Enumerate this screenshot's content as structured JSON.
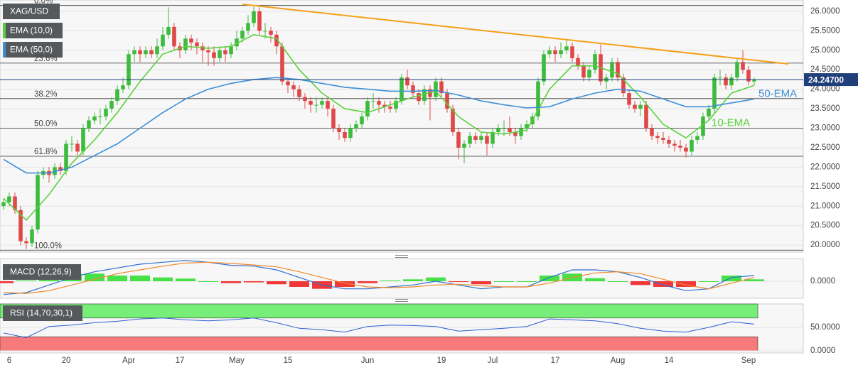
{
  "chart_data": [
    {
      "type": "candlestick",
      "title": "XAG/USD",
      "categories": [
        null,
        "6",
        null,
        null,
        null,
        null,
        null,
        null,
        null,
        null,
        null,
        "20",
        null,
        null,
        null,
        null,
        null,
        null,
        null,
        null,
        null,
        null,
        "Apr",
        null,
        null,
        null,
        null,
        null,
        null,
        null,
        null,
        "17",
        null,
        null,
        null,
        null,
        null,
        null,
        null,
        null,
        null,
        "May",
        null,
        null,
        null,
        null,
        null,
        null,
        null,
        null,
        "15",
        null,
        null,
        null,
        null,
        null,
        null,
        null,
        null,
        null,
        null,
        null,
        null,
        null,
        "Jun",
        null,
        null,
        null,
        null,
        null,
        null,
        null,
        null,
        null,
        null,
        null,
        null,
        "19",
        null,
        null,
        null,
        null,
        null,
        null,
        null,
        null,
        "Jul",
        null,
        null,
        null,
        null,
        null,
        null,
        null,
        null,
        null,
        null,
        "17",
        null,
        null,
        null,
        null,
        null,
        null,
        null,
        null,
        null,
        null,
        "Aug",
        null,
        null,
        null,
        null,
        null,
        null,
        null,
        null,
        "14",
        null,
        null,
        null,
        null,
        null,
        null,
        null,
        null,
        null,
        null,
        null,
        null,
        null,
        "Sep",
        null
      ],
      "open": [
        21.0,
        21.1,
        21.25,
        20.9,
        20.1,
        20.05,
        20.4,
        21.8,
        21.9,
        21.8,
        22.0,
        21.9,
        22.6,
        22.6,
        22.4,
        23.0,
        23.2,
        23.3,
        23.3,
        23.5,
        23.7,
        24.0,
        24.1,
        24.9,
        25.0,
        24.9,
        25.0,
        24.9,
        25.1,
        25.4,
        25.6,
        25.1,
        25.0,
        25.3,
        25.2,
        25.1,
        25.0,
        24.95,
        24.8,
        25.0,
        24.9,
        25.1,
        25.3,
        25.5,
        25.7,
        26.0,
        25.5,
        25.5,
        25.4,
        25.1,
        24.2,
        24.1,
        24.0,
        23.8,
        23.7,
        23.6,
        23.6,
        23.7,
        23.5,
        23.0,
        22.9,
        22.75,
        23.0,
        23.1,
        23.3,
        23.7,
        23.7,
        23.6,
        23.55,
        23.5,
        23.7,
        24.3,
        24.1,
        23.9,
        23.7,
        24.0,
        23.8,
        24.2,
        23.9,
        23.5,
        22.9,
        22.5,
        22.6,
        22.8,
        22.7,
        22.8,
        22.6,
        22.9,
        23.0,
        23.0,
        22.9,
        22.8,
        23.0,
        23.1,
        23.3,
        24.2,
        24.9,
        25.0,
        24.9,
        25.0,
        25.1,
        24.8,
        24.6,
        24.3,
        24.5,
        24.9,
        24.2,
        24.3,
        24.7,
        24.3,
        23.9,
        23.6,
        23.5,
        23.6,
        23.0,
        22.8,
        22.75,
        22.7,
        22.6,
        22.55,
        22.5,
        22.4,
        22.7,
        22.8,
        23.3,
        23.5,
        24.3,
        24.3,
        24.1,
        24.3,
        24.7,
        24.5,
        24.2
      ],
      "high": [
        21.2,
        21.35,
        21.35,
        21.0,
        20.2,
        20.5,
        21.9,
        22.0,
        22.0,
        22.1,
        22.1,
        22.7,
        22.8,
        22.7,
        23.1,
        23.3,
        23.4,
        23.5,
        23.6,
        23.8,
        24.1,
        24.3,
        25.0,
        25.1,
        25.1,
        25.1,
        25.1,
        25.3,
        25.6,
        26.1,
        25.7,
        25.2,
        25.4,
        25.4,
        25.3,
        25.2,
        25.1,
        25.1,
        25.1,
        25.1,
        25.2,
        25.5,
        25.6,
        25.9,
        26.12,
        26.1,
        25.7,
        25.6,
        25.5,
        25.2,
        24.3,
        24.2,
        24.1,
        23.9,
        23.8,
        23.8,
        23.8,
        23.8,
        23.6,
        23.1,
        23.0,
        23.1,
        23.2,
        23.4,
        23.8,
        23.9,
        23.8,
        23.7,
        23.7,
        23.8,
        24.4,
        24.5,
        24.2,
        24.0,
        24.1,
        24.1,
        24.3,
        24.3,
        24.0,
        23.6,
        23.0,
        22.7,
        22.9,
        22.9,
        22.9,
        22.9,
        23.0,
        23.1,
        23.2,
        23.3,
        23.0,
        23.1,
        23.2,
        23.4,
        24.3,
        25.0,
        25.1,
        25.1,
        25.2,
        25.3,
        25.2,
        24.9,
        24.7,
        24.6,
        25.0,
        25.15,
        24.4,
        24.8,
        24.8,
        24.4,
        24.0,
        23.7,
        23.7,
        23.7,
        23.1,
        22.9,
        22.9,
        22.8,
        22.7,
        22.7,
        22.6,
        22.8,
        22.9,
        23.4,
        23.6,
        24.4,
        24.5,
        24.4,
        24.4,
        24.8,
        25.0,
        24.6,
        24.3
      ],
      "low": [
        20.9,
        21.0,
        20.8,
        20.0,
        19.9,
        19.95,
        20.3,
        21.7,
        21.6,
        21.7,
        21.8,
        21.8,
        22.4,
        22.3,
        22.3,
        22.9,
        23.1,
        23.1,
        23.2,
        23.4,
        23.6,
        23.9,
        24.0,
        24.7,
        24.7,
        24.8,
        24.8,
        24.8,
        25.0,
        25.3,
        25.0,
        24.8,
        24.9,
        25.0,
        24.9,
        24.7,
        24.6,
        24.6,
        24.7,
        24.7,
        24.8,
        25.0,
        25.2,
        25.4,
        25.6,
        25.4,
        25.3,
        25.2,
        24.9,
        24.1,
        23.9,
        23.8,
        23.7,
        23.5,
        23.4,
        23.4,
        23.5,
        23.3,
        22.9,
        22.7,
        22.65,
        22.65,
        22.9,
        23.0,
        23.2,
        23.5,
        23.4,
        23.4,
        23.4,
        23.4,
        23.6,
        24.0,
        23.8,
        23.6,
        23.6,
        23.2,
        23.7,
        23.8,
        23.4,
        22.8,
        22.2,
        22.1,
        22.5,
        22.6,
        22.6,
        22.3,
        22.5,
        22.8,
        22.8,
        22.8,
        22.6,
        22.7,
        22.9,
        23.0,
        23.2,
        24.1,
        24.8,
        24.7,
        24.8,
        24.9,
        24.7,
        24.5,
        24.2,
        24.2,
        24.4,
        24.1,
        24.0,
        24.2,
        24.2,
        23.8,
        23.5,
        23.4,
        23.3,
        22.9,
        22.7,
        22.6,
        22.6,
        22.5,
        22.4,
        22.4,
        22.25,
        22.3,
        22.6,
        22.7,
        23.2,
        23.4,
        24.1,
        24.0,
        24.0,
        24.2,
        24.4,
        24.1,
        24.1
      ],
      "close": [
        21.1,
        21.25,
        20.9,
        20.1,
        20.05,
        20.4,
        21.8,
        21.9,
        21.8,
        22.0,
        21.9,
        22.6,
        22.6,
        22.4,
        23.0,
        23.2,
        23.3,
        23.3,
        23.5,
        23.7,
        24.0,
        24.1,
        24.9,
        25.0,
        24.9,
        25.0,
        24.9,
        25.1,
        25.4,
        25.6,
        25.1,
        25.0,
        25.3,
        25.2,
        25.1,
        25.0,
        24.95,
        24.8,
        25.0,
        24.9,
        25.1,
        25.3,
        25.5,
        25.7,
        26.0,
        25.5,
        25.5,
        25.4,
        25.1,
        24.2,
        24.1,
        24.0,
        23.8,
        23.7,
        23.6,
        23.6,
        23.7,
        23.5,
        23.0,
        22.9,
        22.75,
        23.0,
        23.1,
        23.3,
        23.7,
        23.7,
        23.6,
        23.55,
        23.5,
        23.7,
        24.3,
        24.1,
        23.9,
        23.7,
        24.0,
        23.8,
        24.2,
        23.9,
        23.5,
        22.9,
        22.5,
        22.6,
        22.8,
        22.7,
        22.8,
        22.6,
        22.9,
        23.0,
        23.0,
        22.9,
        22.8,
        23.0,
        23.1,
        23.3,
        24.2,
        24.9,
        25.0,
        24.9,
        25.0,
        25.1,
        24.8,
        24.6,
        24.3,
        24.5,
        24.9,
        24.2,
        24.3,
        24.7,
        24.3,
        23.9,
        23.6,
        23.5,
        23.6,
        23.0,
        22.8,
        22.75,
        22.7,
        22.6,
        22.55,
        22.5,
        22.4,
        22.7,
        22.8,
        23.3,
        23.5,
        24.3,
        24.3,
        24.1,
        24.3,
        24.7,
        24.5,
        24.2,
        24.25
      ],
      "up_color": "#3dbb3d",
      "down_color": "#e04848",
      "xlim": [
        -0.625,
        140.625
      ],
      "ylim": [
        19.82,
        26.29
      ],
      "yticks": [
        {
          "value": 20,
          "label": "20.0000"
        },
        {
          "value": 20.5,
          "label": "20.5000"
        },
        {
          "value": 21,
          "label": "21.0000"
        },
        {
          "value": 21.5,
          "label": "21.5000"
        },
        {
          "value": 22,
          "label": "22.0000"
        },
        {
          "value": 22.5,
          "label": "22.5000"
        },
        {
          "value": 23,
          "label": "23.0000"
        },
        {
          "value": 23.5,
          "label": "23.5000"
        },
        {
          "value": 24,
          "label": "24.0000"
        },
        {
          "value": 24.5,
          "label": "24.5000"
        },
        {
          "value": 25,
          "label": "25.0000"
        },
        {
          "value": 25.5,
          "label": "25.5000"
        },
        {
          "value": 26,
          "label": "26.0000"
        }
      ],
      "grid": true,
      "series": [
        {
          "name": "EMA (10,0)",
          "annotation": "10-EMA",
          "color": "#5ad13a",
          "x": [
            0,
            4,
            8,
            12,
            16,
            20,
            24,
            28,
            32,
            36,
            40,
            44,
            48,
            52,
            56,
            60,
            64,
            68,
            72,
            76,
            80,
            84,
            88,
            92,
            96,
            100,
            104,
            108,
            112,
            116,
            120,
            124,
            128,
            132
          ],
          "values": [
            21.2,
            20.64,
            21.3,
            22.1,
            22.7,
            23.4,
            24.2,
            24.9,
            25.1,
            25.05,
            25.1,
            25.4,
            25.3,
            24.5,
            23.9,
            23.5,
            23.4,
            23.6,
            23.8,
            23.95,
            23.3,
            22.9,
            22.85,
            22.95,
            24.0,
            24.6,
            24.6,
            24.4,
            23.8,
            23.1,
            22.75,
            23.2,
            23.9,
            24.1
          ]
        },
        {
          "name": "EMA (50,0)",
          "annotation": "50-EMA",
          "color": "#3d8fd6",
          "x": [
            0,
            4,
            8,
            12,
            16,
            20,
            24,
            28,
            32,
            36,
            40,
            44,
            48,
            52,
            56,
            60,
            64,
            68,
            72,
            76,
            80,
            84,
            88,
            92,
            96,
            100,
            104,
            108,
            112,
            116,
            120,
            124,
            128,
            132
          ],
          "values": [
            22.2,
            21.85,
            21.85,
            22.0,
            22.3,
            22.6,
            23.0,
            23.4,
            23.75,
            24.0,
            24.15,
            24.25,
            24.3,
            24.25,
            24.15,
            24.05,
            24.0,
            23.95,
            23.95,
            23.97,
            23.85,
            23.7,
            23.6,
            23.52,
            23.55,
            23.75,
            23.9,
            24.0,
            23.95,
            23.75,
            23.55,
            23.55,
            23.65,
            23.75
          ]
        }
      ],
      "trendline": {
        "color": "#f5a01a",
        "x": [
          42,
          138
        ],
        "values": [
          26.18,
          24.65
        ]
      },
      "fib_levels": [
        {
          "label": "0.0%",
          "value": 26.15
        },
        {
          "label": "23.6%",
          "value": 24.67
        },
        {
          "label": "38.2%",
          "value": 23.76
        },
        {
          "label": "50.0%",
          "value": 23.0
        },
        {
          "label": "61.8%",
          "value": 22.28
        },
        {
          "label": "100.0%",
          "value": 19.87
        }
      ],
      "last_price": {
        "value": 24.247,
        "label": "24.24700"
      }
    },
    {
      "type": "macd",
      "title": "MACD (12,26,9)",
      "x": [
        0,
        4,
        8,
        12,
        16,
        20,
        24,
        28,
        32,
        36,
        40,
        44,
        48,
        52,
        56,
        60,
        64,
        68,
        72,
        76,
        80,
        84,
        88,
        92,
        96,
        100,
        104,
        108,
        112,
        116,
        120,
        124,
        128,
        132
      ],
      "ylim": [
        -0.45,
        0.6
      ],
      "yticks": [
        {
          "value": 0,
          "label": "0.0000"
        }
      ],
      "series": [
        {
          "name": "MACD",
          "color": "#2f6fd1",
          "values": [
            -0.35,
            -0.3,
            -0.1,
            0.1,
            0.25,
            0.35,
            0.45,
            0.5,
            0.55,
            0.5,
            0.42,
            0.4,
            0.3,
            0.1,
            -0.1,
            -0.2,
            -0.2,
            -0.15,
            -0.1,
            0.0,
            -0.1,
            -0.2,
            -0.15,
            -0.15,
            0.1,
            0.3,
            0.3,
            0.25,
            0.1,
            -0.1,
            -0.25,
            -0.2,
            0.1,
            0.15
          ]
        },
        {
          "name": "Signal",
          "color": "#f08a2a",
          "values": [
            -0.3,
            -0.32,
            -0.25,
            -0.1,
            0.05,
            0.2,
            0.3,
            0.4,
            0.48,
            0.5,
            0.47,
            0.43,
            0.38,
            0.25,
            0.1,
            -0.05,
            -0.15,
            -0.17,
            -0.15,
            -0.1,
            -0.08,
            -0.12,
            -0.15,
            -0.15,
            -0.05,
            0.1,
            0.22,
            0.25,
            0.2,
            0.05,
            -0.1,
            -0.2,
            -0.05,
            0.1
          ]
        }
      ],
      "histogram": {
        "up_color": "#33dd33",
        "down_color": "#ee2222",
        "values": [
          -0.05,
          0.02,
          0.15,
          0.2,
          0.2,
          0.15,
          0.15,
          0.1,
          0.07,
          0,
          -0.05,
          -0.03,
          -0.08,
          -0.15,
          -0.2,
          -0.15,
          -0.05,
          0.02,
          0.05,
          0.1,
          -0.02,
          -0.08,
          0,
          0,
          0.15,
          0.2,
          0.08,
          0,
          -0.1,
          -0.15,
          -0.15,
          0,
          0.15,
          0.05
        ]
      }
    },
    {
      "type": "rsi",
      "title": "RSI (14,70,30,1)",
      "x": [
        0,
        4,
        8,
        12,
        16,
        20,
        24,
        28,
        32,
        36,
        40,
        44,
        48,
        52,
        56,
        60,
        64,
        68,
        72,
        76,
        80,
        84,
        88,
        92,
        96,
        100,
        104,
        108,
        112,
        116,
        120,
        124,
        128,
        132
      ],
      "ylim": [
        0,
        100
      ],
      "yticks": [
        {
          "value": 50,
          "label": "50.0000"
        },
        {
          "value": 0,
          "label": "0.0000"
        }
      ],
      "overbought": 70,
      "oversold": 30,
      "overbought_color": "#77ee77",
      "oversold_color": "#f77a7a",
      "series": [
        {
          "name": "RSI",
          "color": "#2f5fd1",
          "values": [
            38,
            28,
            52,
            55,
            60,
            63,
            68,
            70,
            66,
            64,
            66,
            70,
            60,
            48,
            45,
            40,
            52,
            55,
            54,
            52,
            42,
            45,
            48,
            52,
            68,
            66,
            64,
            58,
            48,
            42,
            40,
            50,
            62,
            57
          ]
        }
      ]
    }
  ]
}
